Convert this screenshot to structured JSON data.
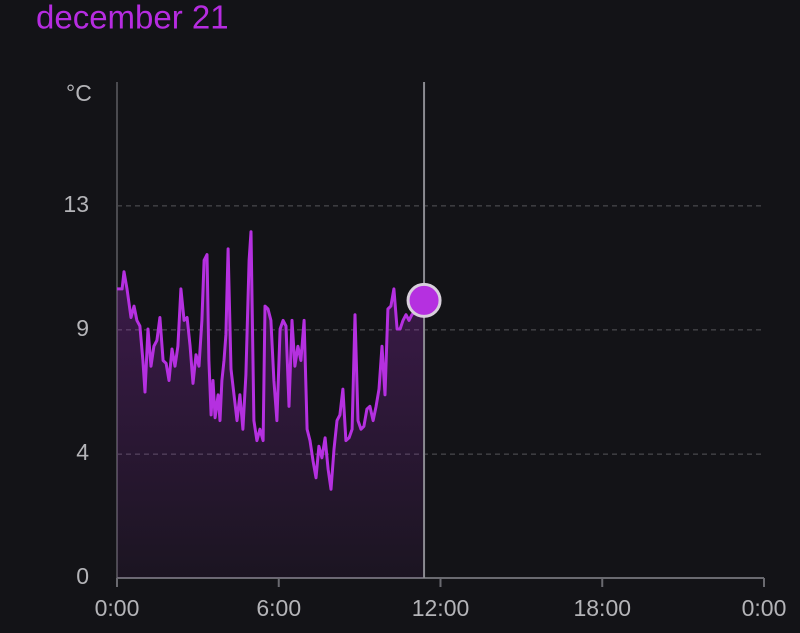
{
  "chart_data": {
    "type": "line",
    "title": "december 21",
    "y_label": "°C",
    "x": [
      0.0,
      0.19,
      0.26,
      0.37,
      0.52,
      0.63,
      0.74,
      0.85,
      0.96,
      1.04,
      1.15,
      1.26,
      1.37,
      1.48,
      1.59,
      1.71,
      1.82,
      1.93,
      2.04,
      2.15,
      2.26,
      2.37,
      2.49,
      2.6,
      2.71,
      2.82,
      2.93,
      3.04,
      3.15,
      3.23,
      3.34,
      3.41,
      3.49,
      3.56,
      3.64,
      3.75,
      3.82,
      3.89,
      3.97,
      4.04,
      4.12,
      4.23,
      4.34,
      4.45,
      4.56,
      4.67,
      4.78,
      4.9,
      4.97,
      5.08,
      5.19,
      5.3,
      5.42,
      5.49,
      5.6,
      5.71,
      5.82,
      5.93,
      6.05,
      6.16,
      6.27,
      6.38,
      6.49,
      6.6,
      6.71,
      6.82,
      6.94,
      7.05,
      7.16,
      7.27,
      7.38,
      7.49,
      7.6,
      7.72,
      7.83,
      7.94,
      8.05,
      8.16,
      8.27,
      8.38,
      8.49,
      8.61,
      8.72,
      8.83,
      8.94,
      9.05,
      9.16,
      9.27,
      9.38,
      9.5,
      9.61,
      9.72,
      9.83,
      9.94,
      10.05,
      10.16,
      10.27,
      10.39,
      10.5,
      10.61,
      10.72,
      10.83,
      10.94,
      11.05,
      11.16,
      11.39
    ],
    "series": [
      {
        "color": "#b530e0",
        "values": [
          10.1,
          10.1,
          10.7,
          10.1,
          9.1,
          9.5,
          9.0,
          8.8,
          7.6,
          6.5,
          8.7,
          7.4,
          8.1,
          8.3,
          9.1,
          7.6,
          7.5,
          6.9,
          8.0,
          7.4,
          8.1,
          10.1,
          9.0,
          9.1,
          8.1,
          6.8,
          7.8,
          7.4,
          9.0,
          11.1,
          11.3,
          7.6,
          5.7,
          6.9,
          5.6,
          6.4,
          5.5,
          6.9,
          7.6,
          8.5,
          11.5,
          7.3,
          6.4,
          5.5,
          6.4,
          5.2,
          7.1,
          11.1,
          12.1,
          5.5,
          4.8,
          5.2,
          4.8,
          9.5,
          9.4,
          9.0,
          6.9,
          5.5,
          8.7,
          9.0,
          8.8,
          6.0,
          9.0,
          7.4,
          8.1,
          7.6,
          9.0,
          5.2,
          4.8,
          4.1,
          3.5,
          4.6,
          4.2,
          4.9,
          3.8,
          3.1,
          4.5,
          5.5,
          5.7,
          6.6,
          4.8,
          4.9,
          5.2,
          9.2,
          5.5,
          5.2,
          5.3,
          5.9,
          6.0,
          5.5,
          6.0,
          6.6,
          8.1,
          6.4,
          9.4,
          9.5,
          10.1,
          8.7,
          8.7,
          9.0,
          9.2,
          9.0,
          9.2,
          9.3,
          9.4,
          9.7
        ]
      }
    ],
    "xlim": [
      0,
      24
    ],
    "xticks": [
      {
        "value": 0,
        "label": "0:00"
      },
      {
        "value": 6,
        "label": "6:00"
      },
      {
        "value": 12,
        "label": "12:00"
      },
      {
        "value": 18,
        "label": "18:00"
      },
      {
        "value": 24,
        "label": "0:00"
      }
    ],
    "ylim": [
      0,
      17.33
    ],
    "yticks": [
      0,
      {
        "value": 4.33,
        "label": "4"
      },
      {
        "value": 8.67,
        "label": "9"
      },
      13
    ],
    "grid": true
  }
}
